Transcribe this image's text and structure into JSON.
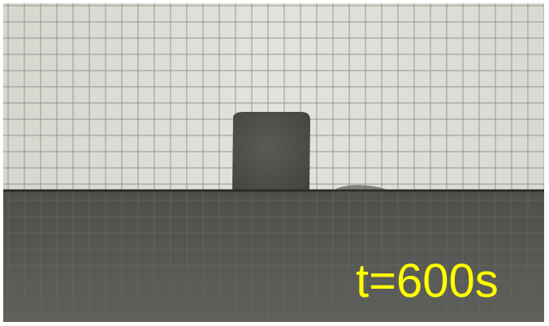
{
  "caption": {
    "time_label": "t=600s",
    "color": "#ffff00"
  },
  "scene": {
    "background_color": "#dcddd6",
    "grid_line_color": "#8e918c",
    "liquid_color": "#545551",
    "block_color": "#4f504c",
    "surface_line_color": "#2b2c2a"
  }
}
